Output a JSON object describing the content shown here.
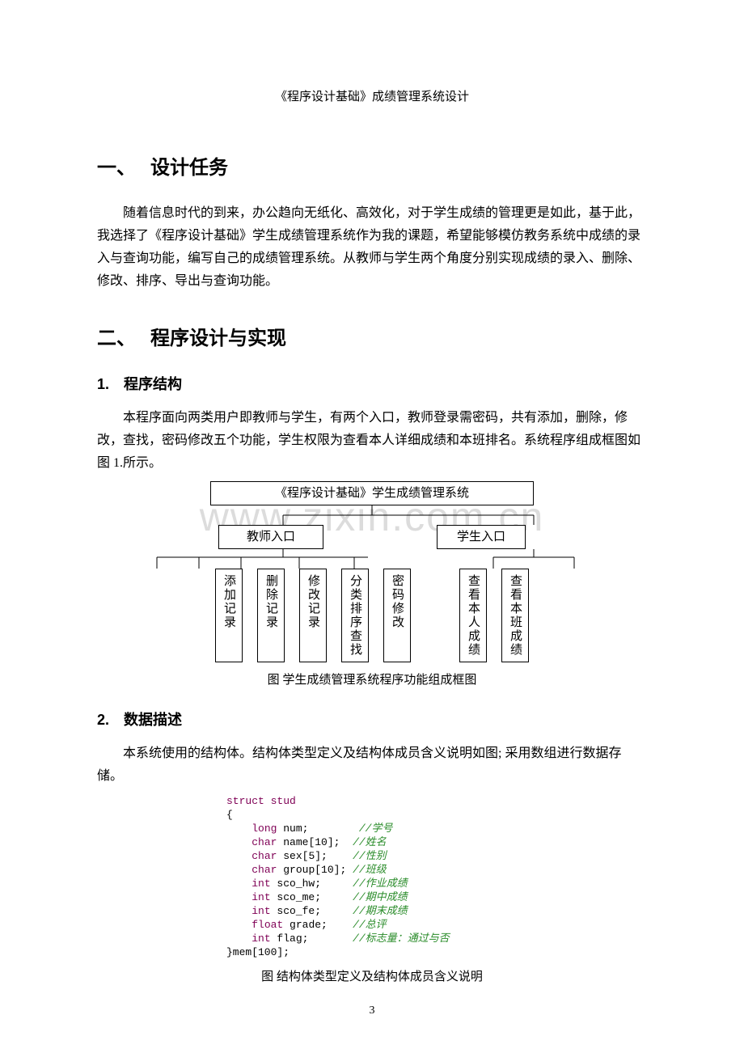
{
  "header": "《程序设计基础》成绩管理系统设计",
  "watermark": "www.zixin.com.cn",
  "section1": {
    "num": "一、",
    "title": "设计任务",
    "para": "随着信息时代的到来，办公趋向无纸化、高效化，对于学生成绩的管理更是如此，基于此，我选择了《程序设计基础》学生成绩管理系统作为我的课题，希望能够模仿教务系统中成绩的录入与查询功能，编写自己的成绩管理系统。从教师与学生两个角度分别实现成绩的录入、删除、修改、排序、导出与查询功能。"
  },
  "section2": {
    "num": "二、",
    "title": "程序设计与实现"
  },
  "sub1": {
    "num": "1.",
    "title": "程序结构",
    "para": "本程序面向两类用户即教师与学生，有两个入口，教师登录需密码，共有添加，删除，修改，查找，密码修改五个功能，学生权限为查看本人详细成绩和本班排名。系统程序组成框图如图 1.所示。"
  },
  "diagram": {
    "top": "《程序设计基础》学生成绩管理系统",
    "teacher": "教师入口",
    "student": "学生入口",
    "leaves_teacher": [
      "添加记录",
      "删除记录",
      "修改记录",
      "分类排序查找",
      "密码修改"
    ],
    "leaves_student": [
      "查看本人成绩",
      "查看本班成绩"
    ],
    "caption": "图 学生成绩管理系统程序功能组成框图"
  },
  "sub2": {
    "num": "2.",
    "title": "数据描述",
    "para": "本系统使用的结构体。结构体类型定义及结构体成员含义说明如图; 采用数组进行数据存储。"
  },
  "code": {
    "lines": [
      {
        "t": "struct",
        "c": "kw",
        "rest": " stud"
      },
      {
        "raw": "{"
      },
      {
        "indent": "    ",
        "ty": "long",
        "id": " num;",
        "pad": "        ",
        "cm": "//学号"
      },
      {
        "indent": "    ",
        "ty": "char",
        "id": " name[10];",
        "pad": "  ",
        "cm": "//姓名"
      },
      {
        "indent": "    ",
        "ty": "char",
        "id": " sex[5];",
        "pad": "    ",
        "cm": "//性别"
      },
      {
        "indent": "    ",
        "ty": "char",
        "id": " group[10];",
        "pad": " ",
        "cm": "//班级"
      },
      {
        "indent": "    ",
        "ty": "int",
        "id": " sco_hw;",
        "pad": "     ",
        "cm": "//作业成绩"
      },
      {
        "indent": "    ",
        "ty": "int",
        "id": " sco_me;",
        "pad": "     ",
        "cm": "//期中成绩"
      },
      {
        "indent": "    ",
        "ty": "int",
        "id": " sco_fe;",
        "pad": "     ",
        "cm": "//期末成绩"
      },
      {
        "indent": "    ",
        "ty": "float",
        "id": " grade;",
        "pad": "    ",
        "cm": "//总评"
      },
      {
        "indent": "    ",
        "ty": "int",
        "id": " flag;",
        "pad": "       ",
        "cm": "//标志量：通过与否"
      },
      {
        "raw": "}mem[100];"
      }
    ],
    "caption": "图 结构体类型定义及结构体成员含义说明"
  },
  "page_number": "3",
  "colors": {
    "text": "#000000",
    "bg": "#ffffff",
    "watermark": "#dcdcdc",
    "code_keyword": "#7f0055",
    "code_comment": "#2a8c2a"
  }
}
